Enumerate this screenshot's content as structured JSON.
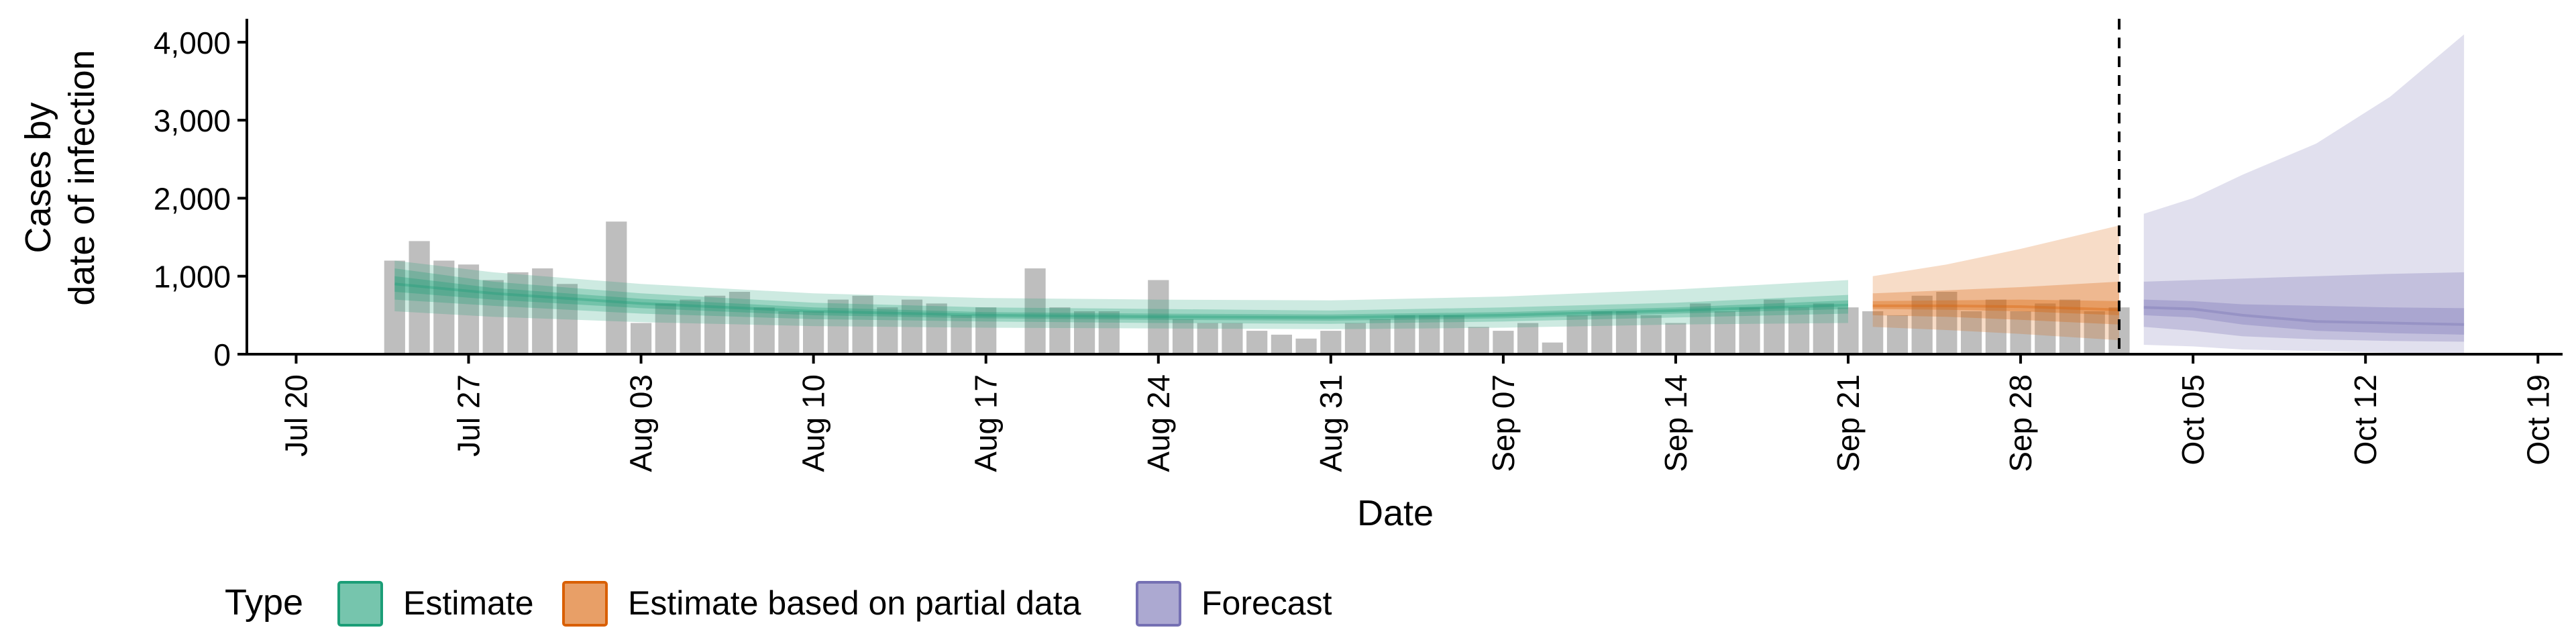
{
  "chart_data": {
    "type": "bar",
    "ylabel_lines": [
      "Cases by",
      "date of infection"
    ],
    "xlabel": "Date",
    "ylim": [
      0,
      4300
    ],
    "y_ticks": [
      0,
      1000,
      2000,
      3000,
      4000
    ],
    "y_tick_labels": [
      "0",
      "1,000",
      "2,000",
      "3,000",
      "4,000"
    ],
    "x_range": [
      "2020-07-18",
      "2020-10-20"
    ],
    "x_ticks": [
      "2020-07-20",
      "2020-07-27",
      "2020-08-03",
      "2020-08-10",
      "2020-08-17",
      "2020-08-24",
      "2020-08-31",
      "2020-09-07",
      "2020-09-14",
      "2020-09-21",
      "2020-09-28",
      "2020-10-05",
      "2020-10-12",
      "2020-10-19"
    ],
    "x_tick_labels": [
      "Jul 20",
      "Jul 27",
      "Aug 03",
      "Aug 10",
      "Aug 17",
      "Aug 24",
      "Aug 31",
      "Sep 07",
      "Sep 14",
      "Sep 21",
      "Sep 28",
      "Oct 05",
      "Oct 12",
      "Oct 19"
    ],
    "grid": false,
    "bar_color": "#bebebe",
    "bars": {
      "start_date": "2020-07-24",
      "values": [
        1200,
        1450,
        1200,
        1150,
        950,
        1050,
        1100,
        900,
        0,
        1700,
        400,
        650,
        700,
        750,
        800,
        600,
        550,
        550,
        700,
        750,
        600,
        700,
        650,
        500,
        600,
        0,
        1100,
        600,
        550,
        550,
        0,
        950,
        450,
        400,
        400,
        300,
        250,
        200,
        300,
        400,
        450,
        500,
        500,
        500,
        350,
        300,
        400,
        150,
        500,
        550,
        550,
        500,
        400,
        650,
        550,
        600,
        700,
        600,
        650,
        600,
        550,
        500,
        750,
        800,
        550,
        700,
        550,
        650,
        700,
        550,
        600
      ]
    },
    "forecast_line_date": "2020-10-02",
    "bands": [
      {
        "type": "Estimate",
        "color": "#1b9e77",
        "dates": [
          "2020-07-24",
          "2020-07-28",
          "2020-08-03",
          "2020-08-10",
          "2020-08-17",
          "2020-08-24",
          "2020-08-31",
          "2020-09-07",
          "2020-09-14",
          "2020-09-21"
        ],
        "median": [
          900,
          780,
          650,
          550,
          500,
          480,
          470,
          500,
          560,
          630
        ],
        "lower_20": [
          800,
          700,
          590,
          500,
          460,
          440,
          430,
          460,
          520,
          580
        ],
        "upper_20": [
          1000,
          850,
          710,
          600,
          540,
          520,
          510,
          540,
          600,
          690
        ],
        "lower_50": [
          700,
          620,
          520,
          450,
          420,
          400,
          390,
          420,
          470,
          520
        ],
        "upper_50": [
          1100,
          930,
          780,
          660,
          600,
          580,
          560,
          600,
          660,
          760
        ],
        "lower_90": [
          550,
          480,
          410,
          360,
          340,
          330,
          320,
          340,
          380,
          400
        ],
        "upper_90": [
          1200,
          1050,
          900,
          780,
          720,
          700,
          690,
          740,
          830,
          950
        ]
      },
      {
        "type": "Estimate based on partial data",
        "color": "#d95f02",
        "dates": [
          "2020-09-22",
          "2020-09-25",
          "2020-09-28",
          "2020-10-02"
        ],
        "median": [
          620,
          620,
          610,
          570
        ],
        "lower_20": [
          580,
          570,
          550,
          500
        ],
        "upper_20": [
          680,
          690,
          700,
          680
        ],
        "lower_50": [
          500,
          480,
          440,
          380
        ],
        "upper_50": [
          780,
          820,
          860,
          930
        ],
        "lower_90": [
          350,
          310,
          260,
          180
        ],
        "upper_90": [
          1000,
          1150,
          1350,
          1650
        ]
      },
      {
        "type": "Forecast",
        "color": "#7570b3",
        "dates": [
          "2020-10-03",
          "2020-10-05",
          "2020-10-07",
          "2020-10-10",
          "2020-10-13",
          "2020-10-16"
        ],
        "median": [
          600,
          580,
          500,
          420,
          400,
          380
        ],
        "lower_20": [
          500,
          470,
          380,
          300,
          270,
          250
        ],
        "upper_20": [
          700,
          680,
          640,
          620,
          600,
          590
        ],
        "lower_50": [
          350,
          300,
          230,
          190,
          170,
          160
        ],
        "upper_50": [
          930,
          950,
          970,
          1000,
          1030,
          1050
        ],
        "lower_90": [
          120,
          100,
          60,
          40,
          20,
          10
        ],
        "upper_90": [
          1800,
          2000,
          2300,
          2700,
          3300,
          4100
        ]
      }
    ],
    "legend": {
      "title": "Type",
      "position": "bottom",
      "items": [
        {
          "label": "Estimate",
          "color": "#1b9e77"
        },
        {
          "label": "Estimate based on partial data",
          "color": "#d95f02"
        },
        {
          "label": "Forecast",
          "color": "#7570b3"
        }
      ]
    }
  }
}
